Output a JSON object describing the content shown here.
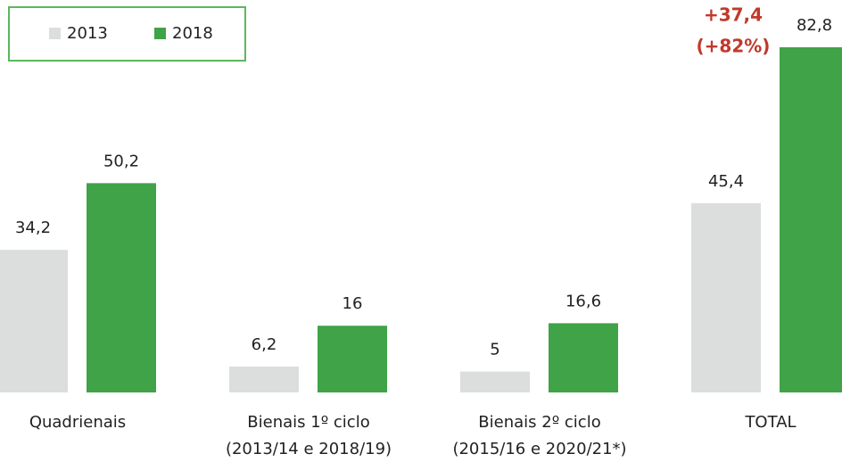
{
  "chart_data": {
    "type": "bar",
    "categories": [
      [
        "Quadrienais"
      ],
      [
        "Bienais 1º ciclo",
        "(2013/14 e 2018/19)"
      ],
      [
        "Bienais  2º ciclo",
        "(2015/16 e 2020/21*)"
      ],
      [
        "TOTAL"
      ]
    ],
    "series": [
      {
        "name": "2013",
        "color": "#dcdddd",
        "values": [
          34.2,
          6.2,
          5,
          45.4
        ],
        "value_labels": [
          "34,2",
          "6,2",
          "5",
          "45,4"
        ]
      },
      {
        "name": "2018",
        "color": "#40a347",
        "values": [
          50.2,
          16,
          16.6,
          82.8
        ],
        "value_labels": [
          "50,2",
          "16",
          "16,6",
          "82,8"
        ]
      }
    ],
    "annotations": [
      "+37,4",
      "(+82%)"
    ],
    "annotation_color": "#c0392b",
    "legend": "top-left"
  }
}
